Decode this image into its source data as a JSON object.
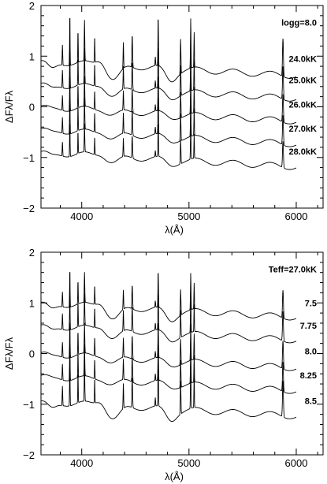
{
  "chart_data": [
    {
      "type": "line",
      "xlabel": "λ(Å)",
      "ylabel": "ΔFλ/Fλ",
      "xlim": [
        3620,
        6250
      ],
      "ylim": [
        -2,
        2
      ],
      "xticks": [
        "4000",
        "5000",
        "6000"
      ],
      "yticks": [
        "−2",
        "−1",
        "0",
        "1",
        "2"
      ],
      "header": "logg=8.0",
      "series": [
        {
          "name": "24.0kK",
          "offset": 0.9,
          "label_y": 0.95,
          "lines": 1.15,
          "broad": 1.3
        },
        {
          "name": "25.0kK",
          "offset": 0.45,
          "label_y": 0.53,
          "lines": 1.0,
          "broad": 0.75
        },
        {
          "name": "26.0kK",
          "offset": 0.0,
          "label_y": 0.05,
          "lines": 0.85,
          "broad": 0.35
        },
        {
          "name": "27.0kK",
          "offset": -0.45,
          "label_y": -0.43,
          "lines": 0.9,
          "broad": 0.45
        },
        {
          "name": "28.0kK",
          "offset": -0.9,
          "label_y": -0.88,
          "lines": 0.8,
          "broad": 0.55
        }
      ]
    },
    {
      "type": "line",
      "xlabel": "λ(Å)",
      "ylabel": "ΔFλ/Fλ",
      "xlim": [
        3620,
        6250
      ],
      "ylim": [
        -2,
        2
      ],
      "xticks": [
        "4000",
        "5000",
        "6000"
      ],
      "yticks": [
        "−2",
        "−1",
        "0",
        "1",
        "2"
      ],
      "header": "Teff=27.0kK",
      "series": [
        {
          "name": "7.5",
          "offset": 1.0,
          "label_y": 1.0,
          "lines": 0.85,
          "broad": 1.1
        },
        {
          "name": "7.75",
          "offset": 0.55,
          "label_y": 0.55,
          "lines": 0.9,
          "broad": 0.8
        },
        {
          "name": "8.0",
          "offset": 0.0,
          "label_y": 0.05,
          "lines": 0.85,
          "broad": 0.45
        },
        {
          "name": "8.25",
          "offset": -0.45,
          "label_y": -0.43,
          "lines": 0.9,
          "broad": 0.35
        },
        {
          "name": "8.5",
          "offset": -0.95,
          "label_y": -0.93,
          "lines": 1.1,
          "broad": 1.2
        }
      ]
    }
  ]
}
